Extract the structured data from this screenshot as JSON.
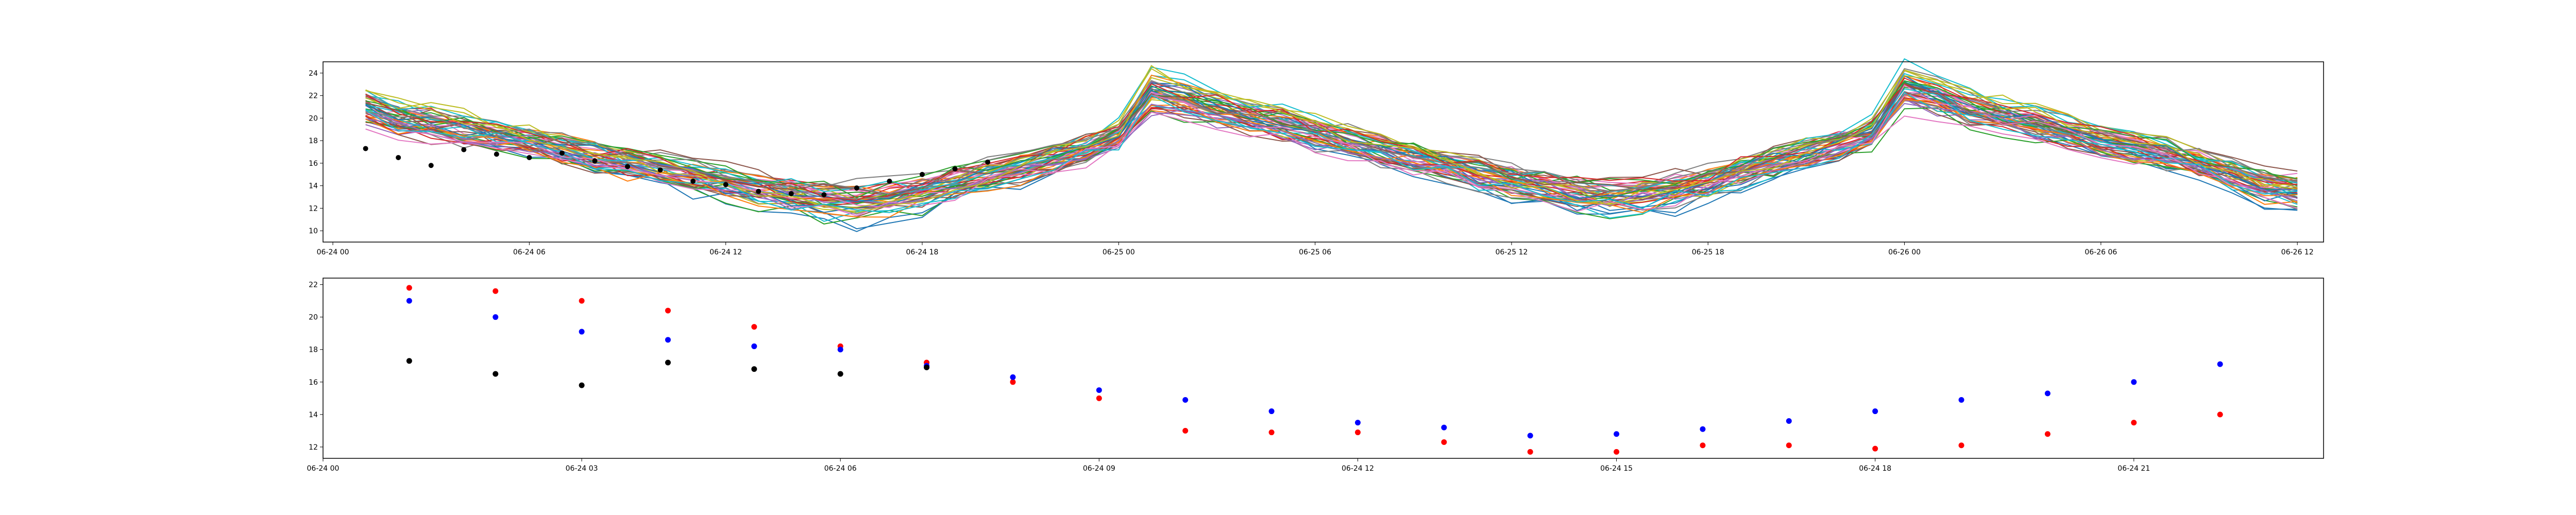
{
  "chart_data": [
    {
      "type": "line",
      "title": "",
      "xlabel": "",
      "ylabel": "",
      "xlim": [
        -0.3,
        60.8
      ],
      "ylim": [
        9,
        25
      ],
      "grid": false,
      "legend": false,
      "x_ticks": [
        {
          "x": 0,
          "label": "06-24 00"
        },
        {
          "x": 6,
          "label": "06-24 06"
        },
        {
          "x": 12,
          "label": "06-24 12"
        },
        {
          "x": 18,
          "label": "06-24 18"
        },
        {
          "x": 24,
          "label": "06-25 00"
        },
        {
          "x": 30,
          "label": "06-25 06"
        },
        {
          "x": 36,
          "label": "06-25 12"
        },
        {
          "x": 42,
          "label": "06-25 18"
        },
        {
          "x": 48,
          "label": "06-26 00"
        },
        {
          "x": 54,
          "label": "06-26 06"
        },
        {
          "x": 60,
          "label": "06-26 12"
        }
      ],
      "y_ticks": [
        10,
        12,
        14,
        16,
        18,
        20,
        22,
        24
      ],
      "ensemble": {
        "member_count": 50,
        "x_start": 1,
        "x_step": 1,
        "base_profile": [
          20.8,
          19.9,
          19.5,
          19.0,
          18.5,
          17.9,
          17.2,
          16.6,
          16.0,
          15.5,
          14.9,
          14.4,
          13.7,
          13.2,
          12.8,
          12.6,
          12.9,
          13.5,
          14.2,
          15.0,
          15.6,
          16.3,
          17.2,
          18.4,
          22.2,
          21.6,
          20.8,
          20.1,
          19.4,
          18.6,
          17.9,
          17.2,
          16.5,
          15.8,
          15.1,
          14.4,
          13.8,
          13.3,
          13.1,
          13.3,
          13.7,
          14.4,
          15.2,
          16.0,
          16.8,
          17.6,
          18.5,
          22.6,
          21.9,
          20.8,
          20.1,
          19.5,
          18.8,
          18.0,
          17.4,
          16.8,
          16.0,
          15.0,
          14.0,
          13.6
        ],
        "colors": [
          "#1f77b4",
          "#ff7f0e",
          "#2ca02c",
          "#d62728",
          "#9467bd",
          "#8c564b",
          "#e377c2",
          "#7f7f7f",
          "#bcbd22",
          "#17becf"
        ]
      },
      "observations": {
        "color": "#000000",
        "x": [
          1,
          2,
          3,
          4,
          5,
          6,
          7,
          8,
          9,
          10,
          11,
          12,
          13,
          14,
          15,
          16,
          17,
          18,
          19,
          20
        ],
        "y": [
          17.3,
          16.5,
          15.8,
          17.2,
          16.8,
          16.5,
          16.9,
          16.2,
          15.7,
          15.4,
          14.4,
          14.1,
          13.5,
          13.3,
          13.2,
          13.8,
          14.4,
          15.0,
          15.5,
          16.1
        ]
      }
    },
    {
      "type": "scatter",
      "title": "",
      "xlabel": "",
      "ylabel": "",
      "xlim": [
        0,
        23.2
      ],
      "ylim": [
        11.3,
        22.4
      ],
      "grid": false,
      "legend": false,
      "x_ticks": [
        {
          "x": 0,
          "label": "06-24 00"
        },
        {
          "x": 3,
          "label": "06-24 03"
        },
        {
          "x": 6,
          "label": "06-24 06"
        },
        {
          "x": 9,
          "label": "06-24 09"
        },
        {
          "x": 12,
          "label": "06-24 12"
        },
        {
          "x": 15,
          "label": "06-24 15"
        },
        {
          "x": 18,
          "label": "06-24 18"
        },
        {
          "x": 21,
          "label": "06-24 21"
        }
      ],
      "y_ticks": [
        12,
        14,
        16,
        18,
        20,
        22
      ],
      "series": [
        {
          "color": "#ff0000",
          "x": [
            1,
            2,
            3,
            4,
            5,
            6,
            7,
            8,
            9,
            10,
            11,
            12,
            13,
            14,
            15,
            16,
            17,
            18,
            19,
            20,
            21,
            22
          ],
          "y": [
            21.8,
            21.6,
            21.0,
            20.4,
            19.4,
            18.2,
            17.2,
            16.0,
            15.0,
            13.0,
            12.9,
            12.9,
            12.3,
            11.7,
            11.7,
            12.1,
            12.1,
            11.9,
            12.1,
            12.8,
            13.5,
            14.0
          ]
        },
        {
          "color": "#0000ff",
          "x": [
            1,
            2,
            3,
            4,
            5,
            6,
            7,
            8,
            9,
            10,
            11,
            12,
            13,
            14,
            15,
            16,
            17,
            18,
            19,
            20,
            21,
            22
          ],
          "y": [
            21.0,
            20.0,
            19.1,
            18.6,
            18.2,
            18.0,
            17.0,
            16.3,
            15.5,
            14.9,
            14.2,
            13.5,
            13.2,
            12.7,
            12.8,
            13.1,
            13.6,
            14.2,
            14.9,
            15.3,
            16.0,
            17.1
          ]
        },
        {
          "color": "#000000",
          "x": [
            1,
            2,
            3,
            4,
            5,
            6,
            7
          ],
          "y": [
            17.3,
            16.5,
            15.8,
            17.2,
            16.8,
            16.5,
            16.9
          ]
        }
      ]
    }
  ]
}
